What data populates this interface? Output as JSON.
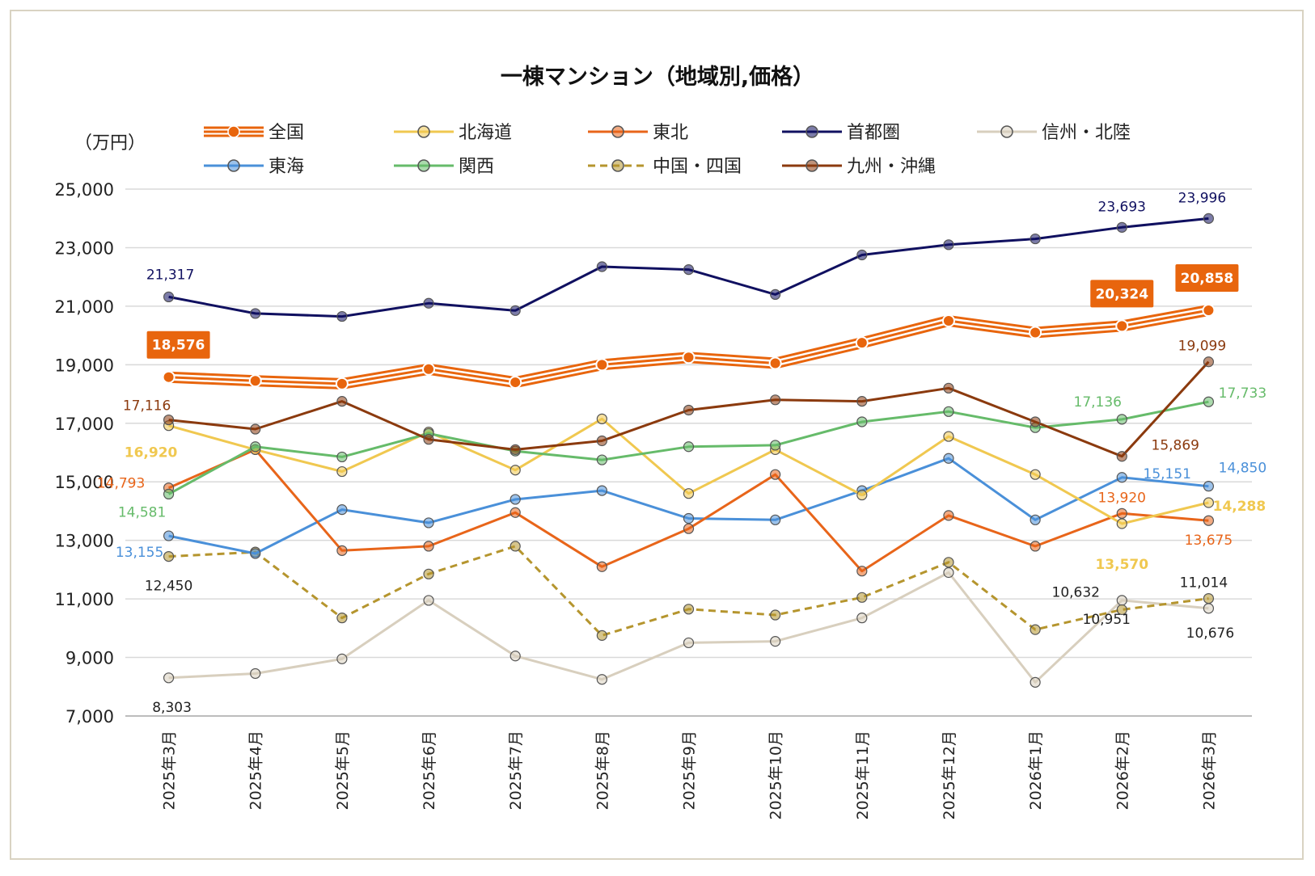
{
  "chart_data": {
    "type": "line",
    "title": "一棟マンション（地域別,価格）",
    "ylabel": "（万円）",
    "ylim": [
      7000,
      25000
    ],
    "yticks": [
      "7,000",
      "9,000",
      "11,000",
      "13,000",
      "15,000",
      "17,000",
      "19,000",
      "21,000",
      "23,000",
      "25,000"
    ],
    "categories": [
      "2025年3月",
      "2025年4月",
      "2025年5月",
      "2025年6月",
      "2025年7月",
      "2025年8月",
      "2025年9月",
      "2025年10月",
      "2025年11月",
      "2025年12月",
      "2026年1月",
      "2026年2月",
      "2026年3月"
    ],
    "grid": true,
    "legend_position": "top",
    "series": [
      {
        "name": "全国",
        "color": "#e8650d",
        "style": "triple",
        "values": [
          18576,
          18450,
          18350,
          18850,
          18400,
          19000,
          19250,
          19050,
          19750,
          20500,
          20100,
          20324,
          20858
        ]
      },
      {
        "name": "北海道",
        "color": "#f0c850",
        "style": "solid",
        "values": [
          16920,
          16100,
          15350,
          16700,
          15400,
          17150,
          14600,
          16100,
          14550,
          16550,
          15250,
          13570,
          14288
        ]
      },
      {
        "name": "東北",
        "color": "#e8651a",
        "style": "solid",
        "values": [
          14793,
          16100,
          12650,
          12800,
          13950,
          12100,
          13400,
          15250,
          11950,
          13850,
          12800,
          13920,
          13675
        ]
      },
      {
        "name": "首都圏",
        "color": "#101060",
        "style": "solid",
        "values": [
          21317,
          20750,
          20650,
          21100,
          20850,
          22350,
          22250,
          21400,
          22750,
          23100,
          23300,
          23693,
          23996
        ]
      },
      {
        "name": "信州・北陸",
        "color": "#d8cfbe",
        "style": "solid",
        "values": [
          8303,
          8450,
          8950,
          10950,
          9050,
          8250,
          9500,
          9550,
          10350,
          11900,
          8150,
          10951,
          10676
        ]
      },
      {
        "name": "東海",
        "color": "#4a90d9",
        "style": "solid",
        "values": [
          13155,
          12550,
          14050,
          13600,
          14400,
          14700,
          13750,
          13700,
          14700,
          15800,
          13700,
          15151,
          14850
        ]
      },
      {
        "name": "関西",
        "color": "#66bb6a",
        "style": "solid",
        "values": [
          14581,
          16200,
          15850,
          16650,
          16050,
          15750,
          16200,
          16250,
          17050,
          17400,
          16850,
          17136,
          17733
        ]
      },
      {
        "name": "中国・四国",
        "color": "#b5952e",
        "style": "dashed",
        "values": [
          12450,
          12600,
          10350,
          11850,
          12800,
          9750,
          10650,
          10450,
          11050,
          12250,
          9950,
          10632,
          11014
        ]
      },
      {
        "name": "九州・沖縄",
        "color": "#8b3a0e",
        "style": "solid",
        "values": [
          17116,
          16800,
          17750,
          16450,
          16100,
          16400,
          17450,
          17800,
          17750,
          18200,
          17050,
          15869,
          19099
        ]
      }
    ],
    "annotations": [
      {
        "series": 0,
        "index": 0,
        "text": "18,576",
        "boxed": true
      },
      {
        "series": 0,
        "index": 11,
        "text": "20,324",
        "boxed": true
      },
      {
        "series": 0,
        "index": 12,
        "text": "20,858",
        "boxed": true
      },
      {
        "series": 3,
        "index": 0,
        "text": "21,317"
      },
      {
        "series": 3,
        "index": 11,
        "text": "23,693"
      },
      {
        "series": 3,
        "index": 12,
        "text": "23,996"
      },
      {
        "series": 8,
        "index": 0,
        "text": "17,116"
      },
      {
        "series": 8,
        "index": 11,
        "text": "15,869"
      },
      {
        "series": 8,
        "index": 12,
        "text": "19,099"
      },
      {
        "series": 1,
        "index": 0,
        "text": "16,920",
        "bold": true
      },
      {
        "series": 1,
        "index": 11,
        "text": "13,570",
        "bold": true
      },
      {
        "series": 1,
        "index": 12,
        "text": "14,288",
        "bold": true
      },
      {
        "series": 2,
        "index": 0,
        "text": "14,793"
      },
      {
        "series": 2,
        "index": 11,
        "text": "13,920"
      },
      {
        "series": 2,
        "index": 12,
        "text": "13,675"
      },
      {
        "series": 6,
        "index": 0,
        "text": "14,581"
      },
      {
        "series": 6,
        "index": 11,
        "text": "17,136"
      },
      {
        "series": 6,
        "index": 12,
        "text": "17,733"
      },
      {
        "series": 5,
        "index": 0,
        "text": "13,155"
      },
      {
        "series": 5,
        "index": 11,
        "text": "15,151"
      },
      {
        "series": 5,
        "index": 12,
        "text": "14,850"
      },
      {
        "series": 7,
        "index": 0,
        "text": "12,450"
      },
      {
        "series": 7,
        "index": 11,
        "text": "10,632"
      },
      {
        "series": 7,
        "index": 12,
        "text": "11,014"
      },
      {
        "series": 4,
        "index": 0,
        "text": "8,303"
      },
      {
        "series": 4,
        "index": 11,
        "text": "10,951"
      },
      {
        "series": 4,
        "index": 12,
        "text": "10,676"
      }
    ]
  }
}
